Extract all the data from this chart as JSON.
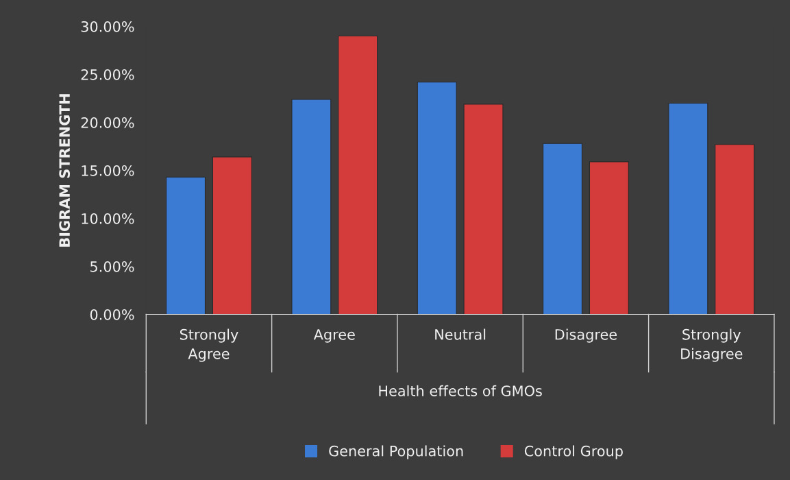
{
  "chart_data": {
    "type": "bar",
    "xlabel": "Health effects of GMOs",
    "ylabel": "BIGRAM STRENGTH",
    "categories": [
      "Strongly\nAgree",
      "Agree",
      "Neutral",
      "Disagree",
      "Strongly\nDisagree"
    ],
    "series": [
      {
        "name": "General Population",
        "color": "#3b7bd4",
        "values": [
          14.3,
          22.4,
          24.2,
          17.8,
          22.0
        ]
      },
      {
        "name": "Control Group",
        "color": "#d43c3c",
        "values": [
          16.4,
          29.0,
          21.9,
          15.9,
          17.7
        ]
      }
    ],
    "ylim": [
      0,
      30
    ],
    "yticks": [
      {
        "value": 0,
        "label": "0.00%"
      },
      {
        "value": 5,
        "label": "5.00%"
      },
      {
        "value": 10,
        "label": "10.00%"
      },
      {
        "value": 15,
        "label": "15.00%"
      },
      {
        "value": 20,
        "label": "20.00%"
      },
      {
        "value": 25,
        "label": "25.00%"
      },
      {
        "value": 30,
        "label": "30.00%"
      }
    ],
    "grid": false,
    "legend": "bottom"
  }
}
